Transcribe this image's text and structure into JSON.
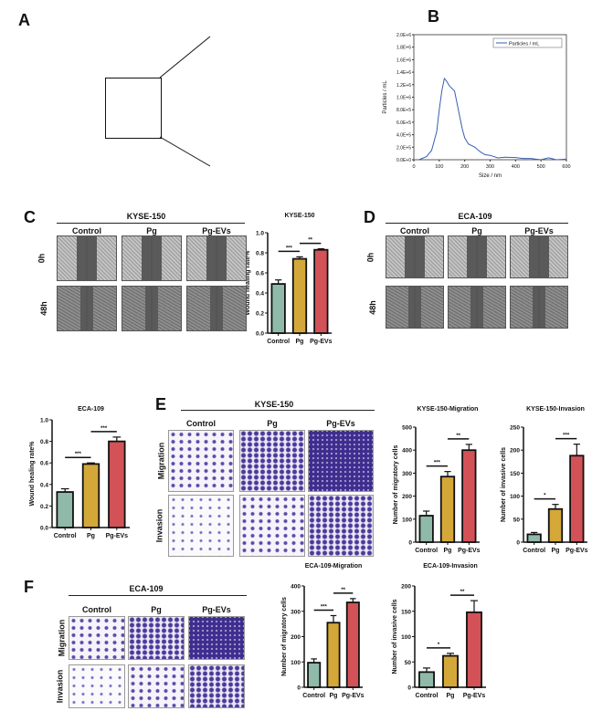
{
  "panels": {
    "A": "A",
    "B": "B",
    "C": "C",
    "D": "D",
    "E": "E",
    "F": "F"
  },
  "cells": {
    "kyse": "KYSE-150",
    "eca": "ECA-109"
  },
  "groups": [
    "Control",
    "Pg",
    "Pg-EVs"
  ],
  "rows_time": [
    "0h",
    "48h"
  ],
  "rows_assay": [
    "Migration",
    "Invasion"
  ],
  "colors": {
    "Control": "#8fb9a8",
    "Pg": "#d4a838",
    "Pg-EVs": "#d25258"
  },
  "chart_data": [
    {
      "id": "nta",
      "type": "line",
      "xlabel": "Size / nm",
      "ylabel": "Particles / mL",
      "legend": "Particles / mL",
      "legend_position": "top-right",
      "xlim": [
        0,
        600
      ],
      "ylim": [
        0,
        2000000
      ],
      "xticks": [
        "0",
        "100",
        "200",
        "300",
        "400",
        "500",
        "600"
      ],
      "yticks": [
        "0.0E+0",
        "2.0E+5",
        "4.0E+5",
        "6.0E+5",
        "8.0E+5",
        "1.0E+6",
        "1.2E+6",
        "1.4E+6",
        "1.6E+6",
        "1.8E+6",
        "2.0E+6"
      ],
      "x": [
        20,
        50,
        70,
        90,
        100,
        110,
        120,
        130,
        140,
        160,
        175,
        190,
        200,
        215,
        240,
        260,
        280,
        300,
        330,
        360,
        400,
        430,
        460,
        480,
        500,
        530,
        560,
        600
      ],
      "y": [
        0,
        50000,
        150000,
        450000,
        800000,
        1100000,
        1300000,
        1250000,
        1180000,
        1100000,
        800000,
        500000,
        350000,
        250000,
        200000,
        130000,
        80000,
        70000,
        30000,
        40000,
        35000,
        20000,
        20000,
        10000,
        0,
        30000,
        0,
        10000
      ]
    },
    {
      "id": "c_bar",
      "type": "bar",
      "title": "KYSE-150",
      "ylabel": "Wound healing rate%",
      "ylim": [
        0,
        1.0
      ],
      "yticks": [
        "0.0",
        "0.2",
        "0.4",
        "0.6",
        "0.8",
        "1.0"
      ],
      "categories": [
        "Control",
        "Pg",
        "Pg-EVs"
      ],
      "values": [
        0.49,
        0.74,
        0.83
      ],
      "errors": [
        0.04,
        0.02,
        0.01
      ],
      "sig": [
        {
          "from": 0,
          "to": 1,
          "label": "***"
        },
        {
          "from": 1,
          "to": 2,
          "label": "**"
        }
      ]
    },
    {
      "id": "d_bar",
      "type": "bar",
      "title": "ECA-109",
      "ylabel": "Wound healing rate%",
      "ylim": [
        0,
        1.0
      ],
      "yticks": [
        "0.0",
        "0.2",
        "0.4",
        "0.6",
        "0.8",
        "1.0"
      ],
      "categories": [
        "Control",
        "Pg",
        "Pg-EVs"
      ],
      "values": [
        0.33,
        0.59,
        0.8
      ],
      "errors": [
        0.03,
        0.01,
        0.04
      ],
      "sig": [
        {
          "from": 0,
          "to": 1,
          "label": "***"
        },
        {
          "from": 1,
          "to": 2,
          "label": "***"
        }
      ]
    },
    {
      "id": "e_mig",
      "type": "bar",
      "title": "KYSE-150-Migration",
      "ylabel": "Number of migratory cells",
      "ylim": [
        0,
        500
      ],
      "yticks": [
        "0",
        "100",
        "200",
        "300",
        "400",
        "500"
      ],
      "categories": [
        "Control",
        "Pg",
        "Pg-EVs"
      ],
      "values": [
        115,
        285,
        400
      ],
      "errors": [
        20,
        22,
        25
      ],
      "sig": [
        {
          "from": 0,
          "to": 1,
          "label": "***"
        },
        {
          "from": 1,
          "to": 2,
          "label": "**"
        }
      ]
    },
    {
      "id": "e_inv",
      "type": "bar",
      "title": "KYSE-150-Invasion",
      "ylabel": "Number of invasive cells",
      "ylim": [
        0,
        250
      ],
      "yticks": [
        "0",
        "50",
        "100",
        "150",
        "200",
        "250"
      ],
      "categories": [
        "Control",
        "Pg",
        "Pg-EVs"
      ],
      "values": [
        17,
        72,
        188
      ],
      "errors": [
        4,
        10,
        25
      ],
      "sig": [
        {
          "from": 0,
          "to": 1,
          "label": "*"
        },
        {
          "from": 1,
          "to": 2,
          "label": "***"
        }
      ]
    },
    {
      "id": "f_mig",
      "type": "bar",
      "title": "ECA-109-Migration",
      "ylabel": "Number of migratory cells",
      "ylim": [
        0,
        400
      ],
      "yticks": [
        "0",
        "100",
        "200",
        "300",
        "400"
      ],
      "categories": [
        "Control",
        "Pg",
        "Pg-EVs"
      ],
      "values": [
        97,
        255,
        335
      ],
      "errors": [
        15,
        28,
        15
      ],
      "sig": [
        {
          "from": 0,
          "to": 1,
          "label": "***"
        },
        {
          "from": 1,
          "to": 2,
          "label": "**"
        }
      ]
    },
    {
      "id": "f_inv",
      "type": "bar",
      "title": "ECA-109-Invasion",
      "ylabel": "Number of invasive cells",
      "ylim": [
        0,
        200
      ],
      "yticks": [
        "0",
        "50",
        "100",
        "150",
        "200"
      ],
      "categories": [
        "Control",
        "Pg",
        "Pg-EVs"
      ],
      "values": [
        30,
        62,
        148
      ],
      "errors": [
        8,
        5,
        23
      ],
      "sig": [
        {
          "from": 0,
          "to": 1,
          "label": "*"
        },
        {
          "from": 1,
          "to": 2,
          "label": "**"
        }
      ]
    }
  ]
}
